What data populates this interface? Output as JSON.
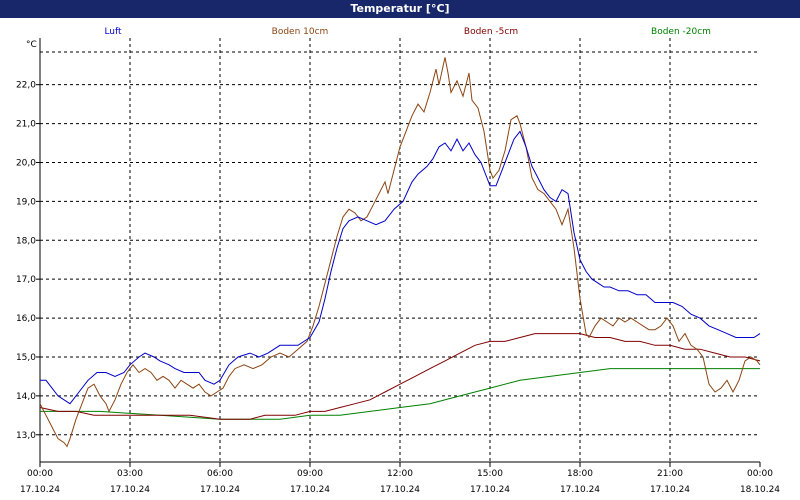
{
  "window": {
    "title": "Temperatur [°C]"
  },
  "chart_data": {
    "type": "line",
    "title": "Temperatur [°C]",
    "ylabel": "°C",
    "ylim": [
      12.3,
      23.2
    ],
    "xlim": [
      0,
      24
    ],
    "grid": true,
    "legend_position": "top",
    "y_ticks": [
      "13,0",
      "14,0",
      "15,0",
      "16,0",
      "17,0",
      "18,0",
      "19,0",
      "20,0",
      "21,0",
      "22,0"
    ],
    "x_ticks": [
      {
        "t": 0,
        "time": "00:00",
        "date": "17.10.24"
      },
      {
        "t": 3,
        "time": "03:00",
        "date": "17.10.24"
      },
      {
        "t": 6,
        "time": "06:00",
        "date": "17.10.24"
      },
      {
        "t": 9,
        "time": "09:00",
        "date": "17.10.24"
      },
      {
        "t": 12,
        "time": "12:00",
        "date": "17.10.24"
      },
      {
        "t": 15,
        "time": "15:00",
        "date": "17.10.24"
      },
      {
        "t": 18,
        "time": "18:00",
        "date": "17.10.24"
      },
      {
        "t": 21,
        "time": "21:00",
        "date": "17.10.24"
      },
      {
        "t": 24,
        "time": "00:00",
        "date": "18.10.24"
      }
    ],
    "series": [
      {
        "name": "Luft",
        "color": "#0000c8",
        "points": [
          [
            0,
            14.4
          ],
          [
            0.2,
            14.4
          ],
          [
            0.4,
            14.2
          ],
          [
            0.6,
            14.0
          ],
          [
            0.8,
            13.9
          ],
          [
            1.0,
            13.8
          ],
          [
            1.3,
            14.1
          ],
          [
            1.6,
            14.4
          ],
          [
            1.9,
            14.6
          ],
          [
            2.2,
            14.6
          ],
          [
            2.5,
            14.5
          ],
          [
            2.8,
            14.6
          ],
          [
            3.0,
            14.8
          ],
          [
            3.3,
            15.0
          ],
          [
            3.5,
            15.1
          ],
          [
            3.8,
            15.0
          ],
          [
            4.0,
            14.9
          ],
          [
            4.3,
            14.8
          ],
          [
            4.5,
            14.7
          ],
          [
            4.8,
            14.6
          ],
          [
            5.0,
            14.6
          ],
          [
            5.3,
            14.6
          ],
          [
            5.5,
            14.4
          ],
          [
            5.8,
            14.3
          ],
          [
            6.0,
            14.4
          ],
          [
            6.3,
            14.8
          ],
          [
            6.6,
            15.0
          ],
          [
            7.0,
            15.1
          ],
          [
            7.3,
            15.0
          ],
          [
            7.6,
            15.1
          ],
          [
            8.0,
            15.3
          ],
          [
            8.3,
            15.3
          ],
          [
            8.6,
            15.3
          ],
          [
            9.0,
            15.5
          ],
          [
            9.3,
            15.9
          ],
          [
            9.5,
            16.5
          ],
          [
            9.7,
            17.2
          ],
          [
            9.9,
            17.8
          ],
          [
            10.1,
            18.3
          ],
          [
            10.3,
            18.5
          ],
          [
            10.6,
            18.6
          ],
          [
            10.9,
            18.5
          ],
          [
            11.2,
            18.4
          ],
          [
            11.5,
            18.5
          ],
          [
            11.8,
            18.8
          ],
          [
            12.1,
            19.0
          ],
          [
            12.4,
            19.5
          ],
          [
            12.6,
            19.7
          ],
          [
            12.9,
            19.9
          ],
          [
            13.1,
            20.1
          ],
          [
            13.3,
            20.4
          ],
          [
            13.5,
            20.5
          ],
          [
            13.7,
            20.3
          ],
          [
            13.9,
            20.6
          ],
          [
            14.1,
            20.3
          ],
          [
            14.3,
            20.5
          ],
          [
            14.5,
            20.2
          ],
          [
            14.7,
            20.0
          ],
          [
            14.9,
            19.6
          ],
          [
            15.0,
            19.4
          ],
          [
            15.2,
            19.4
          ],
          [
            15.4,
            19.8
          ],
          [
            15.6,
            20.2
          ],
          [
            15.8,
            20.6
          ],
          [
            16.0,
            20.8
          ],
          [
            16.2,
            20.4
          ],
          [
            16.4,
            19.9
          ],
          [
            16.6,
            19.6
          ],
          [
            16.8,
            19.3
          ],
          [
            17.0,
            19.1
          ],
          [
            17.2,
            19.0
          ],
          [
            17.4,
            19.3
          ],
          [
            17.6,
            19.2
          ],
          [
            17.8,
            18.2
          ],
          [
            18.0,
            17.5
          ],
          [
            18.2,
            17.2
          ],
          [
            18.4,
            17.0
          ],
          [
            18.6,
            16.9
          ],
          [
            18.8,
            16.8
          ],
          [
            19.0,
            16.8
          ],
          [
            19.3,
            16.7
          ],
          [
            19.6,
            16.7
          ],
          [
            19.9,
            16.6
          ],
          [
            20.2,
            16.6
          ],
          [
            20.5,
            16.4
          ],
          [
            20.8,
            16.4
          ],
          [
            21.1,
            16.4
          ],
          [
            21.4,
            16.3
          ],
          [
            21.7,
            16.1
          ],
          [
            22.0,
            16.0
          ],
          [
            22.3,
            15.8
          ],
          [
            22.6,
            15.7
          ],
          [
            22.9,
            15.6
          ],
          [
            23.2,
            15.5
          ],
          [
            23.5,
            15.5
          ],
          [
            23.8,
            15.5
          ],
          [
            24,
            15.6
          ]
        ]
      },
      {
        "name": "Boden 10cm",
        "color": "#8b4513",
        "points": [
          [
            0,
            13.8
          ],
          [
            0.2,
            13.5
          ],
          [
            0.4,
            13.2
          ],
          [
            0.6,
            12.9
          ],
          [
            0.8,
            12.8
          ],
          [
            0.9,
            12.7
          ],
          [
            1.0,
            12.9
          ],
          [
            1.2,
            13.4
          ],
          [
            1.4,
            13.8
          ],
          [
            1.6,
            14.2
          ],
          [
            1.8,
            14.3
          ],
          [
            2.0,
            14.0
          ],
          [
            2.2,
            13.8
          ],
          [
            2.3,
            13.6
          ],
          [
            2.5,
            13.9
          ],
          [
            2.7,
            14.3
          ],
          [
            2.9,
            14.6
          ],
          [
            3.1,
            14.8
          ],
          [
            3.3,
            14.6
          ],
          [
            3.5,
            14.7
          ],
          [
            3.7,
            14.6
          ],
          [
            3.9,
            14.4
          ],
          [
            4.1,
            14.5
          ],
          [
            4.3,
            14.4
          ],
          [
            4.5,
            14.2
          ],
          [
            4.7,
            14.4
          ],
          [
            4.9,
            14.3
          ],
          [
            5.1,
            14.2
          ],
          [
            5.3,
            14.3
          ],
          [
            5.5,
            14.1
          ],
          [
            5.7,
            14.0
          ],
          [
            5.9,
            14.1
          ],
          [
            6.1,
            14.2
          ],
          [
            6.3,
            14.5
          ],
          [
            6.5,
            14.7
          ],
          [
            6.8,
            14.8
          ],
          [
            7.1,
            14.7
          ],
          [
            7.4,
            14.8
          ],
          [
            7.7,
            15.0
          ],
          [
            8.0,
            15.1
          ],
          [
            8.3,
            15.0
          ],
          [
            8.6,
            15.2
          ],
          [
            8.9,
            15.4
          ],
          [
            9.1,
            15.8
          ],
          [
            9.3,
            16.3
          ],
          [
            9.5,
            16.9
          ],
          [
            9.7,
            17.5
          ],
          [
            9.9,
            18.1
          ],
          [
            10.1,
            18.6
          ],
          [
            10.3,
            18.8
          ],
          [
            10.5,
            18.7
          ],
          [
            10.7,
            18.5
          ],
          [
            10.9,
            18.6
          ],
          [
            11.1,
            18.9
          ],
          [
            11.3,
            19.2
          ],
          [
            11.5,
            19.5
          ],
          [
            11.6,
            19.2
          ],
          [
            11.8,
            19.8
          ],
          [
            12.0,
            20.4
          ],
          [
            12.2,
            20.8
          ],
          [
            12.4,
            21.2
          ],
          [
            12.6,
            21.5
          ],
          [
            12.8,
            21.3
          ],
          [
            13.0,
            21.8
          ],
          [
            13.2,
            22.4
          ],
          [
            13.3,
            22.0
          ],
          [
            13.5,
            22.7
          ],
          [
            13.6,
            22.3
          ],
          [
            13.7,
            21.8
          ],
          [
            13.9,
            22.1
          ],
          [
            14.1,
            21.7
          ],
          [
            14.3,
            22.3
          ],
          [
            14.4,
            21.6
          ],
          [
            14.6,
            21.4
          ],
          [
            14.8,
            20.8
          ],
          [
            15.0,
            19.8
          ],
          [
            15.1,
            19.6
          ],
          [
            15.3,
            19.8
          ],
          [
            15.5,
            20.3
          ],
          [
            15.7,
            21.1
          ],
          [
            15.9,
            21.2
          ],
          [
            16.0,
            21.0
          ],
          [
            16.2,
            20.4
          ],
          [
            16.4,
            19.6
          ],
          [
            16.6,
            19.3
          ],
          [
            16.8,
            19.2
          ],
          [
            17.0,
            19.0
          ],
          [
            17.2,
            18.8
          ],
          [
            17.4,
            18.4
          ],
          [
            17.6,
            18.8
          ],
          [
            17.8,
            17.8
          ],
          [
            18.0,
            16.5
          ],
          [
            18.2,
            15.6
          ],
          [
            18.3,
            15.5
          ],
          [
            18.5,
            15.8
          ],
          [
            18.7,
            16.0
          ],
          [
            18.9,
            15.9
          ],
          [
            19.1,
            15.8
          ],
          [
            19.3,
            16.0
          ],
          [
            19.5,
            15.9
          ],
          [
            19.7,
            16.0
          ],
          [
            19.9,
            15.9
          ],
          [
            20.1,
            15.8
          ],
          [
            20.3,
            15.7
          ],
          [
            20.5,
            15.7
          ],
          [
            20.7,
            15.8
          ],
          [
            20.9,
            16.0
          ],
          [
            21.1,
            15.8
          ],
          [
            21.3,
            15.4
          ],
          [
            21.5,
            15.6
          ],
          [
            21.7,
            15.3
          ],
          [
            21.9,
            15.2
          ],
          [
            22.1,
            15.0
          ],
          [
            22.3,
            14.3
          ],
          [
            22.5,
            14.1
          ],
          [
            22.7,
            14.2
          ],
          [
            22.9,
            14.4
          ],
          [
            23.1,
            14.1
          ],
          [
            23.3,
            14.4
          ],
          [
            23.5,
            14.9
          ],
          [
            23.7,
            15.0
          ],
          [
            23.9,
            14.9
          ],
          [
            24,
            14.8
          ]
        ]
      },
      {
        "name": "Boden -5cm",
        "color": "#800000",
        "points": [
          [
            0,
            13.7
          ],
          [
            0.6,
            13.6
          ],
          [
            1.2,
            13.6
          ],
          [
            1.8,
            13.5
          ],
          [
            2.4,
            13.5
          ],
          [
            3.0,
            13.5
          ],
          [
            4.0,
            13.5
          ],
          [
            5.0,
            13.5
          ],
          [
            6.0,
            13.4
          ],
          [
            7.0,
            13.4
          ],
          [
            7.5,
            13.5
          ],
          [
            8.0,
            13.5
          ],
          [
            8.5,
            13.5
          ],
          [
            9.0,
            13.6
          ],
          [
            9.5,
            13.6
          ],
          [
            10.0,
            13.7
          ],
          [
            10.5,
            13.8
          ],
          [
            11.0,
            13.9
          ],
          [
            11.5,
            14.1
          ],
          [
            12.0,
            14.3
          ],
          [
            12.5,
            14.5
          ],
          [
            13.0,
            14.7
          ],
          [
            13.5,
            14.9
          ],
          [
            14.0,
            15.1
          ],
          [
            14.5,
            15.3
          ],
          [
            15.0,
            15.4
          ],
          [
            15.5,
            15.4
          ],
          [
            16.0,
            15.5
          ],
          [
            16.5,
            15.6
          ],
          [
            17.0,
            15.6
          ],
          [
            17.5,
            15.6
          ],
          [
            18.0,
            15.6
          ],
          [
            18.5,
            15.5
          ],
          [
            19.0,
            15.5
          ],
          [
            19.5,
            15.4
          ],
          [
            20.0,
            15.4
          ],
          [
            20.5,
            15.3
          ],
          [
            21.0,
            15.3
          ],
          [
            21.5,
            15.2
          ],
          [
            22.0,
            15.2
          ],
          [
            22.5,
            15.1
          ],
          [
            23.0,
            15.0
          ],
          [
            23.5,
            15.0
          ],
          [
            24,
            14.9
          ]
        ]
      },
      {
        "name": "Boden -20cm",
        "color": "#008000",
        "points": [
          [
            0,
            13.6
          ],
          [
            2.0,
            13.6
          ],
          [
            4.0,
            13.5
          ],
          [
            6.0,
            13.4
          ],
          [
            7.0,
            13.4
          ],
          [
            8.0,
            13.4
          ],
          [
            9.0,
            13.5
          ],
          [
            10.0,
            13.5
          ],
          [
            11.0,
            13.6
          ],
          [
            12.0,
            13.7
          ],
          [
            13.0,
            13.8
          ],
          [
            14.0,
            14.0
          ],
          [
            15.0,
            14.2
          ],
          [
            16.0,
            14.4
          ],
          [
            17.0,
            14.5
          ],
          [
            18.0,
            14.6
          ],
          [
            19.0,
            14.7
          ],
          [
            20.0,
            14.7
          ],
          [
            21.0,
            14.7
          ],
          [
            22.0,
            14.7
          ],
          [
            23.0,
            14.7
          ],
          [
            24,
            14.7
          ]
        ]
      }
    ]
  }
}
